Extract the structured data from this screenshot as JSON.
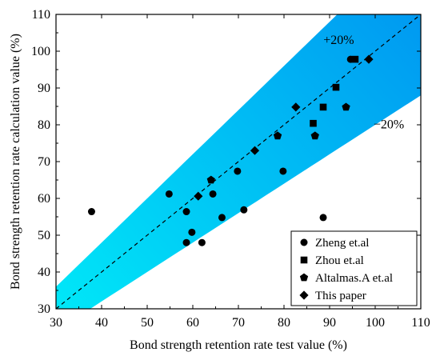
{
  "chart_data": {
    "type": "scatter",
    "xlabel": "Bond strength retention rate test value (%)",
    "ylabel": "Bond strength retention rate calculation value (%)",
    "xlim": [
      30,
      110
    ],
    "ylim": [
      30,
      110
    ],
    "x_ticks": [
      30,
      40,
      50,
      60,
      70,
      80,
      90,
      100,
      110
    ],
    "y_ticks": [
      30,
      40,
      50,
      60,
      70,
      80,
      90,
      100,
      110
    ],
    "grid": false,
    "legend_position": "bottom-right",
    "band_colors": [
      "#00eaf8",
      "#0090f0"
    ],
    "reference_lines": [
      {
        "label": "+20%",
        "slope": 1.2,
        "style": "band-edge"
      },
      {
        "label": "−20%",
        "slope": 0.8,
        "style": "band-edge"
      },
      {
        "label": "",
        "slope": 1.0,
        "style": "dashed"
      }
    ],
    "annotations": [
      {
        "text": "+20%",
        "x": 92,
        "y": 102
      },
      {
        "text": "−20%",
        "x": 103,
        "y": 79
      }
    ],
    "series": [
      {
        "name": "Zheng et.al",
        "marker": "circle",
        "points": [
          [
            37.8,
            56.4
          ],
          [
            54.8,
            61.2
          ],
          [
            58.6,
            56.4
          ],
          [
            58.6,
            48.0
          ],
          [
            59.8,
            50.8
          ],
          [
            62.0,
            48.0
          ],
          [
            64.4,
            61.2
          ],
          [
            66.4,
            54.8
          ],
          [
            69.8,
            67.4
          ],
          [
            71.2,
            56.9
          ],
          [
            79.8,
            67.4
          ],
          [
            88.6,
            54.8
          ],
          [
            94.6,
            97.8
          ]
        ]
      },
      {
        "name": "Zhou et.al",
        "marker": "square",
        "points": [
          [
            86.4,
            80.4
          ],
          [
            88.6,
            84.8
          ],
          [
            91.4,
            90.2
          ],
          [
            95.6,
            97.8
          ]
        ]
      },
      {
        "name": "Altalmas.A et.al",
        "marker": "pentagon",
        "points": [
          [
            64.0,
            65.0
          ],
          [
            78.6,
            77.0
          ],
          [
            86.8,
            77.0
          ],
          [
            93.6,
            84.8
          ]
        ]
      },
      {
        "name": "This paper",
        "marker": "diamond",
        "points": [
          [
            61.2,
            60.6
          ],
          [
            73.6,
            73.0
          ],
          [
            82.6,
            84.8
          ],
          [
            98.6,
            97.8
          ]
        ]
      }
    ]
  }
}
